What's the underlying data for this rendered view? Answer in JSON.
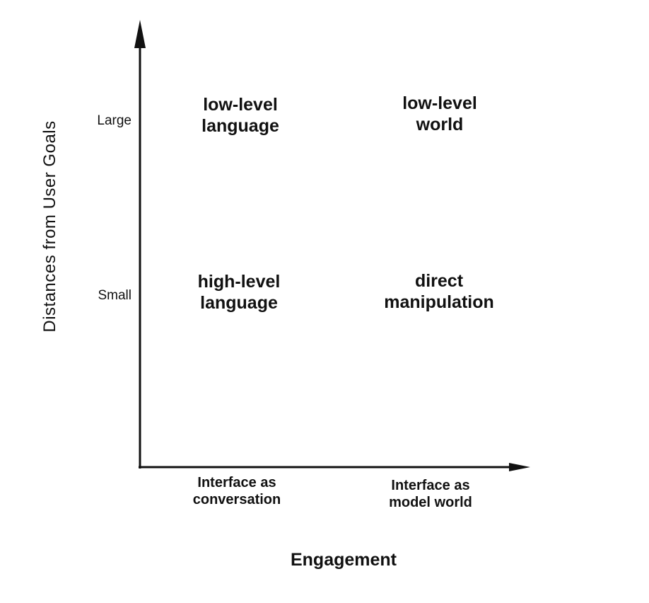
{
  "y_axis": {
    "title": "Distances from User Goals",
    "ticks": [
      "Large",
      "Small"
    ]
  },
  "x_axis": {
    "title": "Engagement",
    "categories": [
      {
        "line1": "Interface as",
        "line2": "conversation"
      },
      {
        "line1": "Interface as",
        "line2": "model world"
      }
    ]
  },
  "quadrants": {
    "large_conversation": {
      "line1": "low-level",
      "line2": "language"
    },
    "large_model": {
      "line1": "low-level",
      "line2": "world"
    },
    "small_conversation": {
      "line1": "high-level",
      "line2": "language"
    },
    "small_model": {
      "line1": "direct",
      "line2": "manipulation"
    }
  },
  "colors": {
    "ink": "#111111",
    "background": "#ffffff"
  }
}
